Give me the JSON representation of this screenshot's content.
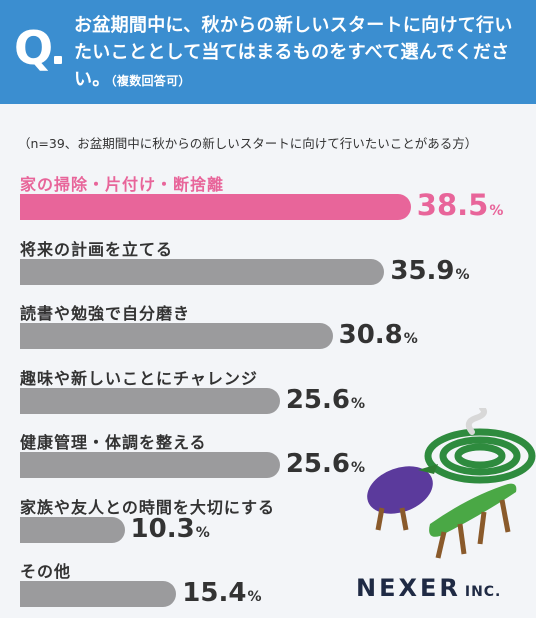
{
  "question": {
    "mark": "Q",
    "text": "お盆期間中に、秋からの新しいスタートに向けて行いたいこととして当てはまるものをすべて選んでください。",
    "note": "（複数回答可）"
  },
  "sample_note": "（n=39、お盆期間中に秋からの新しいスタートに向けて行いたいことがある方）",
  "chart_data": {
    "type": "bar",
    "orientation": "horizontal",
    "categories": [
      "家の掃除・片付け・断捨離",
      "将来の計画を立てる",
      "読書や勉強で自分磨き",
      "趣味や新しいことにチャレンジ",
      "健康管理・体調を整える",
      "家族や友人との時間を大切にする",
      "その他"
    ],
    "values": [
      38.5,
      35.9,
      30.8,
      25.6,
      25.6,
      10.3,
      15.4
    ],
    "value_labels": [
      "38.5",
      "35.9",
      "30.8",
      "25.6",
      "25.6",
      "10.3",
      "15.4"
    ],
    "unit": "%",
    "highlight_index": 0,
    "colors": {
      "highlight": "#e8659a",
      "bar": "#9b9b9d",
      "header": "#3b8ed0"
    }
  },
  "logo": {
    "main": "NEXER",
    "sub": "INC."
  }
}
